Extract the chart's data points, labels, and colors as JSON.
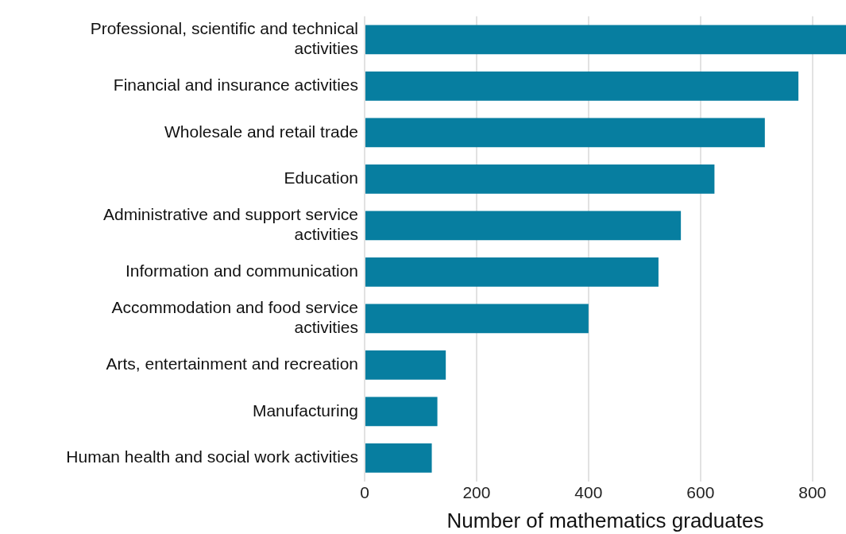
{
  "chart_data": {
    "type": "bar",
    "orientation": "horizontal",
    "xlabel": "Number of mathematics graduates",
    "categories": [
      "Professional, scientific and technical activities",
      "Financial and insurance activities",
      "Wholesale and retail trade",
      "Education",
      "Administrative and support service activities",
      "Information and communication",
      "Accommodation and food service activities",
      "Arts, entertainment and recreation",
      "Manufacturing",
      "Human health and social work activities"
    ],
    "values": [
      860,
      775,
      715,
      625,
      565,
      525,
      400,
      145,
      130,
      120
    ],
    "color": "#077ea0",
    "xlim": [
      0,
      860
    ],
    "xticks": [
      0,
      200,
      400,
      600,
      800
    ],
    "grid": "x",
    "legend": false
  }
}
